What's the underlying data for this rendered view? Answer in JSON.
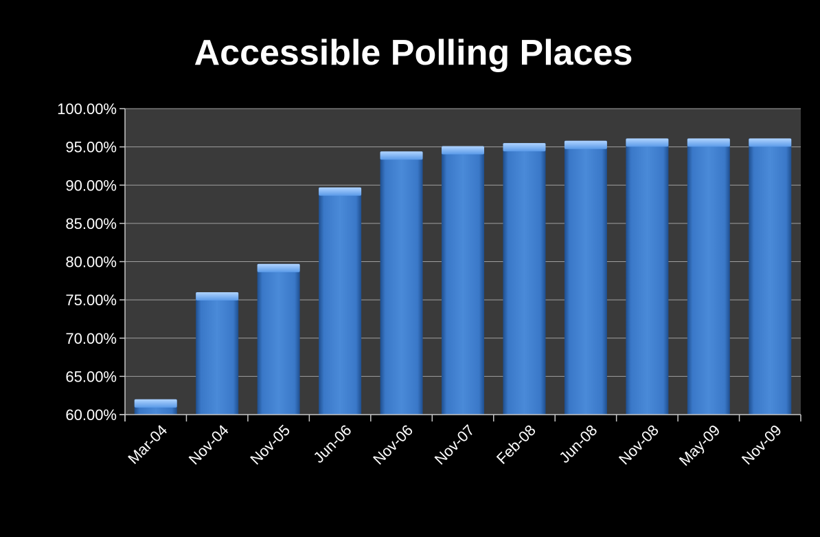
{
  "chart_data": {
    "type": "bar",
    "title": "Accessible Polling Places",
    "xlabel": "",
    "ylabel": "",
    "categories": [
      "Mar-04",
      "Nov-04",
      "Nov-05",
      "Jun-06",
      "Nov-06",
      "Nov-07",
      "Feb-08",
      "Jun-08",
      "Nov-08",
      "May-09",
      "Nov-09"
    ],
    "values": [
      62.0,
      76.0,
      79.7,
      89.7,
      94.4,
      95.1,
      95.5,
      95.8,
      96.1,
      96.1,
      96.1
    ],
    "ylim": [
      60,
      100
    ],
    "yticks": [
      60,
      65,
      70,
      75,
      80,
      85,
      90,
      95,
      100
    ],
    "ytick_labels": [
      "60.00%",
      "65.00%",
      "70.00%",
      "75.00%",
      "80.00%",
      "85.00%",
      "90.00%",
      "95.00%",
      "100.00%"
    ],
    "grid": true,
    "legend": "none",
    "colors": {
      "page_background": "#000000",
      "plot_background": "#3a3a3a",
      "bar": "#3f7fd0",
      "bar_highlight": "#8ab8f0",
      "bar_shadow": "#1f4f8f",
      "gridline": "#a0a0a0",
      "axis": "#c8c8c8",
      "text": "#ffffff"
    }
  }
}
